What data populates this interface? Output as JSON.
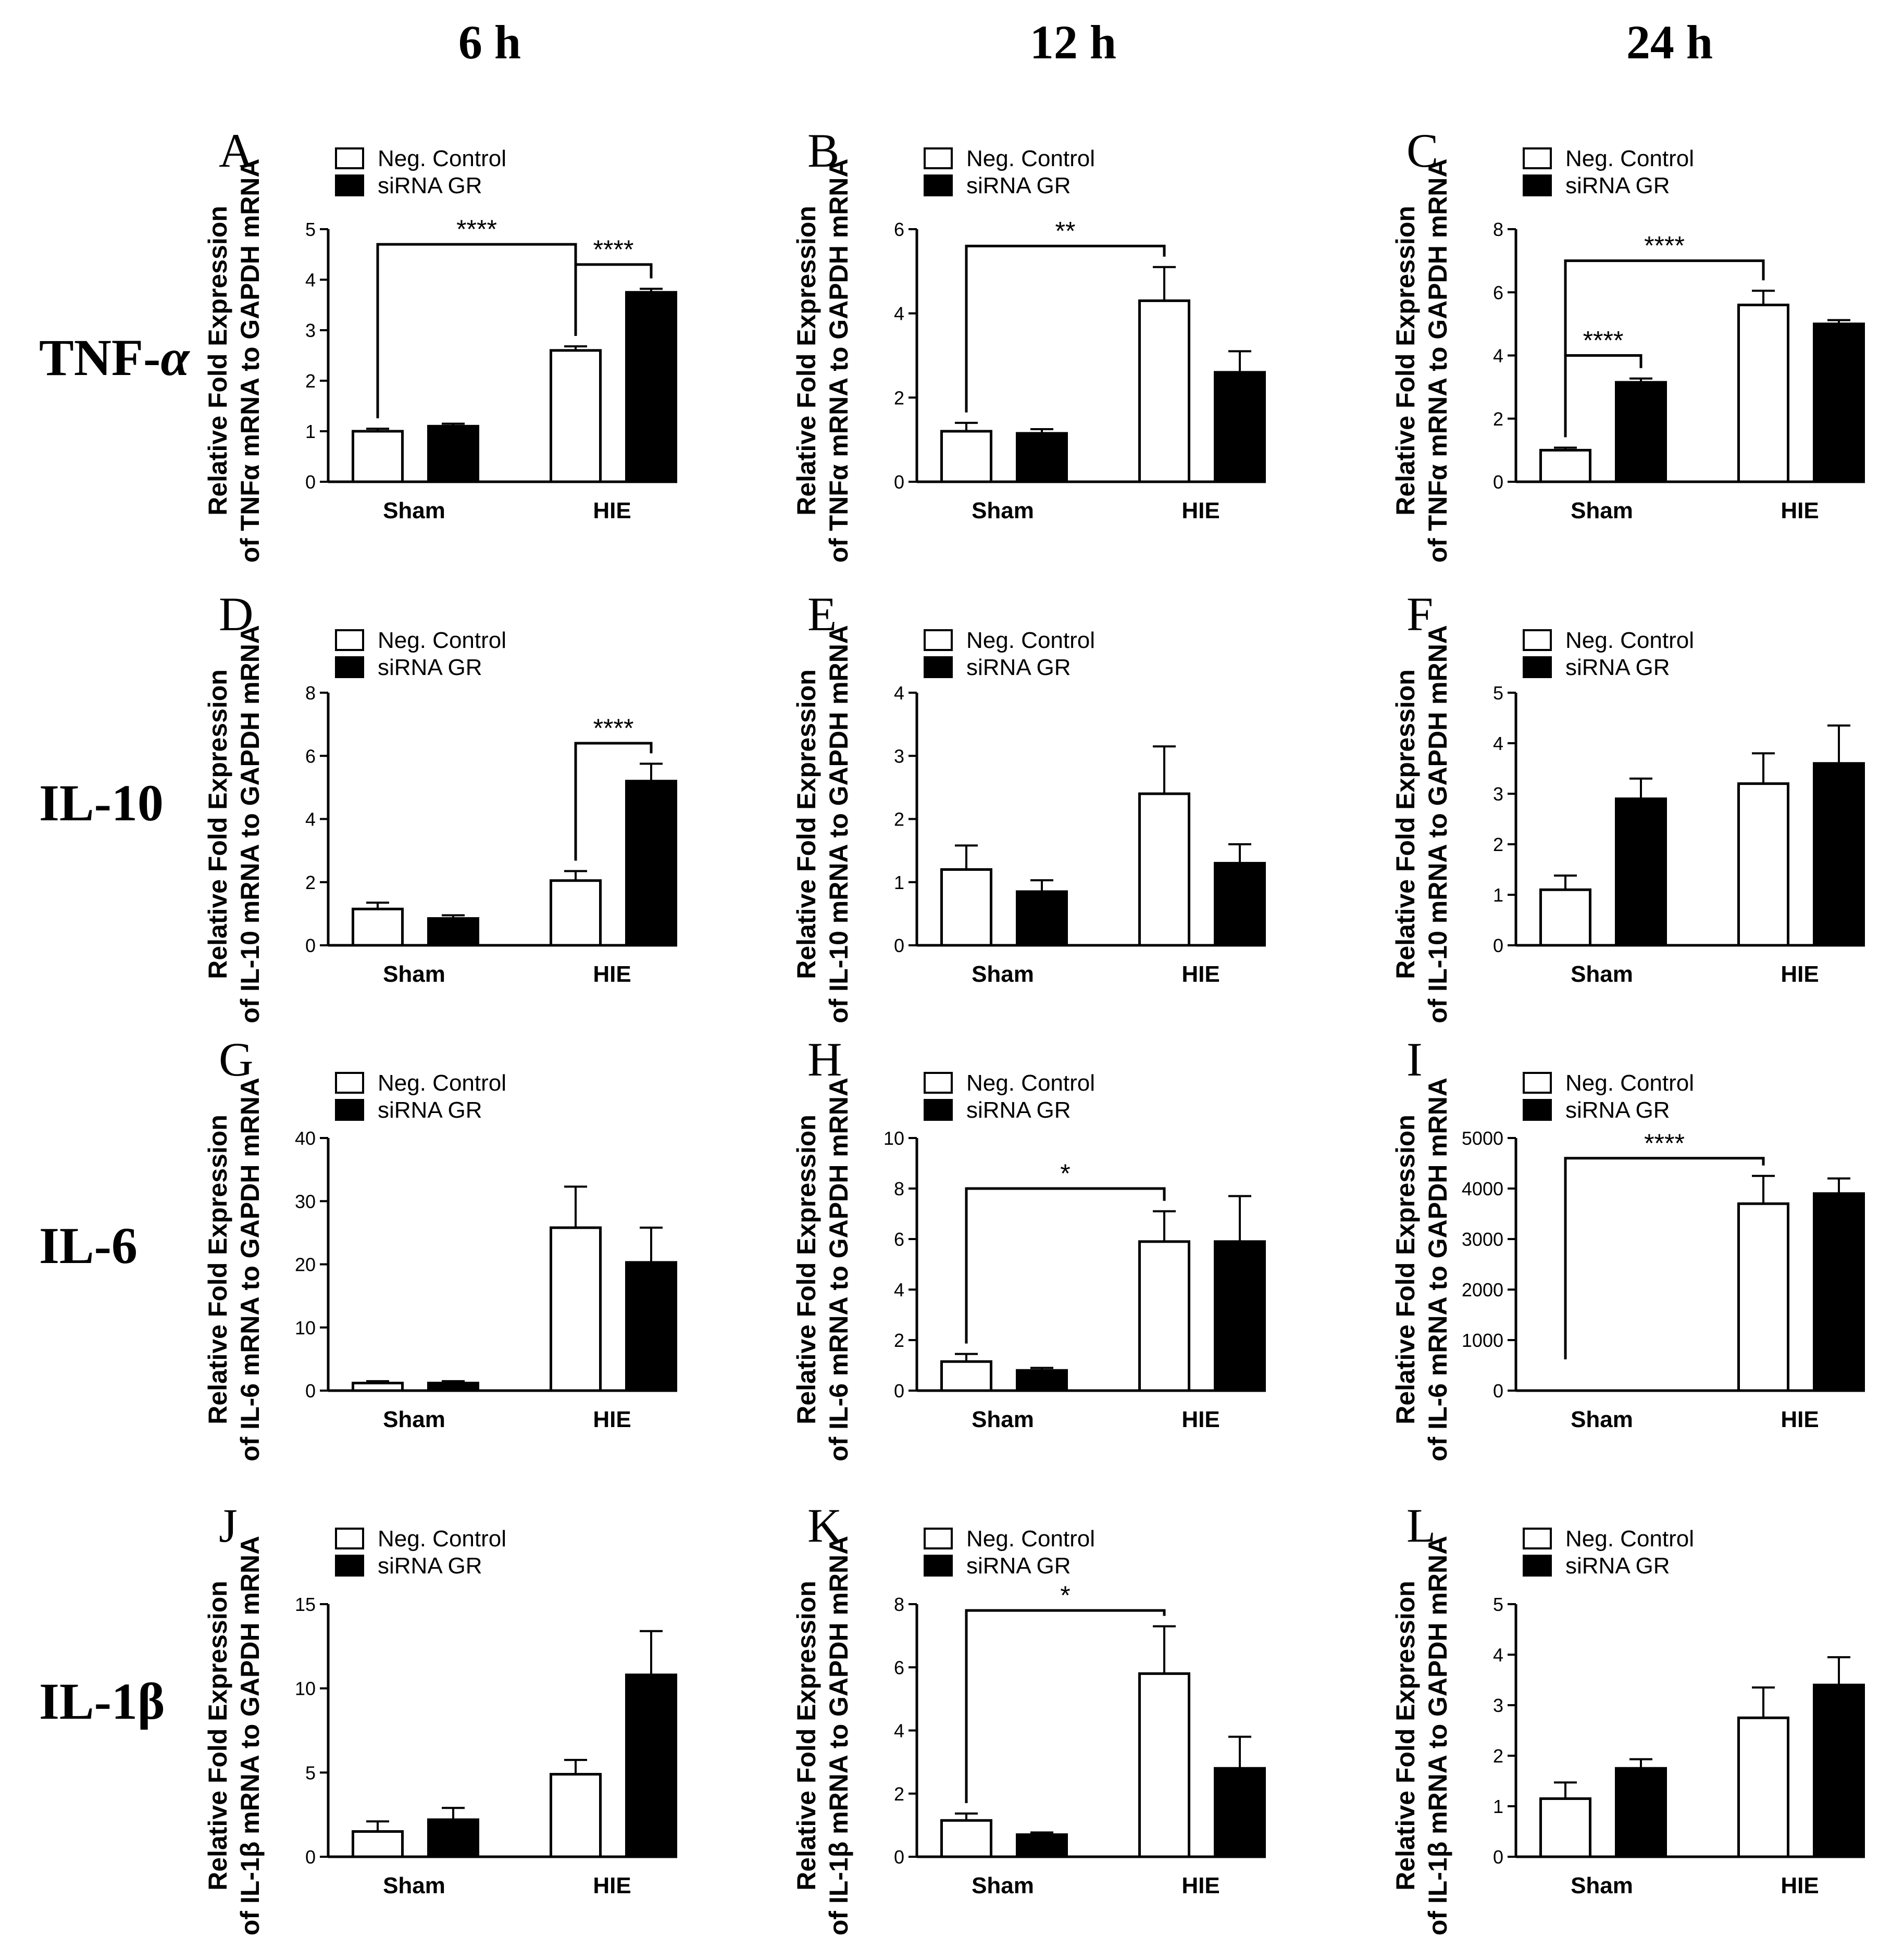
{
  "columns": [
    "6 h",
    "12 h",
    "24 h"
  ],
  "rows": [
    "TNF-",
    "IL-10",
    "IL-6",
    "IL-1β"
  ],
  "row_suffix": {
    "TNF-": "α"
  },
  "legend": {
    "neg": "Neg. Control",
    "sirna": "siRNA GR"
  },
  "colors": {
    "neg": "#ffffff",
    "sirna": "#000000",
    "stroke": "#000000"
  },
  "chart_data": [
    {
      "type": "bar",
      "panel": "A",
      "title": "6 h",
      "ylabel1": "Relative Fold Expression",
      "ylabel2": "of TNFα mRNA to GAPDH mRNA",
      "categories": [
        "Sham",
        "HIE"
      ],
      "ylim": [
        0,
        5
      ],
      "yticks": [
        0,
        1,
        2,
        3,
        4,
        5
      ],
      "series": [
        {
          "name": "Neg. Control",
          "values": [
            1.0,
            2.6
          ],
          "errors": [
            0.05,
            0.08
          ]
        },
        {
          "name": "siRNA GR",
          "values": [
            1.1,
            3.75
          ],
          "errors": [
            0.05,
            0.07
          ]
        }
      ],
      "sig": [
        {
          "from": [
            0,
            0
          ],
          "to": [
            1,
            0
          ],
          "label": "****",
          "y": 4.7
        },
        {
          "from": [
            1,
            0
          ],
          "to": [
            1,
            1
          ],
          "label": "****",
          "y": 4.3
        }
      ]
    },
    {
      "type": "bar",
      "panel": "B",
      "title": "12 h",
      "ylabel1": "Relative Fold Expression",
      "ylabel2": "of TNFα mRNA to GAPDH mRNA",
      "categories": [
        "Sham",
        "HIE"
      ],
      "ylim": [
        0,
        6
      ],
      "yticks": [
        0,
        2,
        4,
        6
      ],
      "series": [
        {
          "name": "Neg. Control",
          "values": [
            1.2,
            4.3
          ],
          "errors": [
            0.2,
            0.8
          ]
        },
        {
          "name": "siRNA GR",
          "values": [
            1.15,
            2.6
          ],
          "errors": [
            0.1,
            0.5
          ]
        }
      ],
      "sig": [
        {
          "from": [
            0,
            0
          ],
          "to": [
            1,
            0
          ],
          "label": "**",
          "y": 5.6
        }
      ]
    },
    {
      "type": "bar",
      "panel": "C",
      "title": "24 h",
      "ylabel1": "Relative Fold Expression",
      "ylabel2": "of TNFα mRNA to GAPDH mRNA",
      "categories": [
        "Sham",
        "HIE"
      ],
      "ylim": [
        0,
        8
      ],
      "yticks": [
        0,
        2,
        4,
        6,
        8
      ],
      "series": [
        {
          "name": "Neg. Control",
          "values": [
            1.0,
            5.6
          ],
          "errors": [
            0.08,
            0.45
          ]
        },
        {
          "name": "siRNA GR",
          "values": [
            3.15,
            5.0
          ],
          "errors": [
            0.12,
            0.12
          ]
        }
      ],
      "sig": [
        {
          "from": [
            0,
            0
          ],
          "to": [
            1,
            0
          ],
          "label": "****",
          "y": 7.0
        },
        {
          "from": [
            0,
            0
          ],
          "to": [
            0,
            1
          ],
          "label": "****",
          "y": 4.0
        }
      ]
    },
    {
      "type": "bar",
      "panel": "D",
      "title": "6 h",
      "ylabel1": "Relative Fold Expression",
      "ylabel2": "of IL-10 mRNA to GAPDH mRNA",
      "categories": [
        "Sham",
        "HIE"
      ],
      "ylim": [
        0,
        8
      ],
      "yticks": [
        0,
        2,
        4,
        6,
        8
      ],
      "series": [
        {
          "name": "Neg. Control",
          "values": [
            1.15,
            2.05
          ],
          "errors": [
            0.2,
            0.3
          ]
        },
        {
          "name": "siRNA GR",
          "values": [
            0.85,
            5.2
          ],
          "errors": [
            0.1,
            0.55
          ]
        }
      ],
      "sig": [
        {
          "from": [
            1,
            0
          ],
          "to": [
            1,
            1
          ],
          "label": "****",
          "y": 6.4
        }
      ]
    },
    {
      "type": "bar",
      "panel": "E",
      "title": "12 h",
      "ylabel1": "Relative Fold Expression",
      "ylabel2": "of IL-10 mRNA to GAPDH mRNA",
      "categories": [
        "Sham",
        "HIE"
      ],
      "ylim": [
        0,
        4
      ],
      "yticks": [
        0,
        1,
        2,
        3,
        4
      ],
      "series": [
        {
          "name": "Neg. Control",
          "values": [
            1.2,
            2.4
          ],
          "errors": [
            0.38,
            0.75
          ]
        },
        {
          "name": "siRNA GR",
          "values": [
            0.85,
            1.3
          ],
          "errors": [
            0.18,
            0.3
          ]
        }
      ],
      "sig": []
    },
    {
      "type": "bar",
      "panel": "F",
      "title": "24 h",
      "ylabel1": "Relative Fold Expression",
      "ylabel2": "of IL-10 mRNA to GAPDH mRNA",
      "categories": [
        "Sham",
        "HIE"
      ],
      "ylim": [
        0,
        5
      ],
      "yticks": [
        0,
        1,
        2,
        3,
        4,
        5
      ],
      "series": [
        {
          "name": "Neg. Control",
          "values": [
            1.1,
            3.2
          ],
          "errors": [
            0.28,
            0.6
          ]
        },
        {
          "name": "siRNA GR",
          "values": [
            2.9,
            3.6
          ],
          "errors": [
            0.4,
            0.75
          ]
        }
      ],
      "sig": []
    },
    {
      "type": "bar",
      "panel": "G",
      "title": "6 h",
      "ylabel1": "Relative Fold Expression",
      "ylabel2": "of IL-6 mRNA to GAPDH mRNA",
      "categories": [
        "Sham",
        "HIE"
      ],
      "ylim": [
        0,
        40
      ],
      "yticks": [
        0,
        10,
        20,
        30,
        40
      ],
      "series": [
        {
          "name": "Neg. Control",
          "values": [
            1.2,
            25.8
          ],
          "errors": [
            0.3,
            6.5
          ]
        },
        {
          "name": "siRNA GR",
          "values": [
            1.2,
            20.3
          ],
          "errors": [
            0.3,
            5.5
          ]
        }
      ],
      "sig": []
    },
    {
      "type": "bar",
      "panel": "H",
      "title": "12 h",
      "ylabel1": "Relative Fold Expression",
      "ylabel2": "of IL-6 mRNA to GAPDH mRNA",
      "categories": [
        "Sham",
        "HIE"
      ],
      "ylim": [
        0,
        10
      ],
      "yticks": [
        0,
        2,
        4,
        6,
        8,
        10
      ],
      "series": [
        {
          "name": "Neg. Control",
          "values": [
            1.15,
            5.9
          ],
          "errors": [
            0.3,
            1.2
          ]
        },
        {
          "name": "siRNA GR",
          "values": [
            0.8,
            5.9
          ],
          "errors": [
            0.1,
            1.8
          ]
        }
      ],
      "sig": [
        {
          "from": [
            0,
            0
          ],
          "to": [
            1,
            0
          ],
          "label": "*",
          "y": 8.0
        }
      ]
    },
    {
      "type": "bar",
      "panel": "I",
      "title": "24 h",
      "ylabel1": "Relative Fold Expression",
      "ylabel2": "of IL-6 mRNA to GAPDH mRNA",
      "categories": [
        "Sham",
        "HIE"
      ],
      "ylim": [
        0,
        5000
      ],
      "yticks": [
        0,
        1000,
        2000,
        3000,
        4000,
        5000
      ],
      "series": [
        {
          "name": "Neg. Control",
          "values": [
            1,
            3700
          ],
          "errors": [
            0,
            550
          ]
        },
        {
          "name": "siRNA GR",
          "values": [
            1,
            3900
          ],
          "errors": [
            0,
            300
          ]
        }
      ],
      "sig": [
        {
          "from": [
            0,
            0
          ],
          "to": [
            1,
            0
          ],
          "label": "****",
          "y": 4600
        }
      ]
    },
    {
      "type": "bar",
      "panel": "J",
      "title": "6 h",
      "ylabel1": "Relative Fold Expression",
      "ylabel2": "of IL-1β mRNA to GAPDH mRNA",
      "categories": [
        "Sham",
        "HIE"
      ],
      "ylim": [
        0,
        15
      ],
      "yticks": [
        0,
        5,
        10,
        15
      ],
      "series": [
        {
          "name": "Neg. Control",
          "values": [
            1.5,
            4.9
          ],
          "errors": [
            0.6,
            0.85
          ]
        },
        {
          "name": "siRNA GR",
          "values": [
            2.2,
            10.8
          ],
          "errors": [
            0.7,
            2.6
          ]
        }
      ],
      "sig": []
    },
    {
      "type": "bar",
      "panel": "K",
      "title": "12 h",
      "ylabel1": "Relative Fold Expression",
      "ylabel2": "of IL-1β mRNA to GAPDH mRNA",
      "categories": [
        "Sham",
        "HIE"
      ],
      "ylim": [
        0,
        8
      ],
      "yticks": [
        0,
        2,
        4,
        6,
        8
      ],
      "series": [
        {
          "name": "Neg. Control",
          "values": [
            1.15,
            5.8
          ],
          "errors": [
            0.22,
            1.5
          ]
        },
        {
          "name": "siRNA GR",
          "values": [
            0.7,
            2.8
          ],
          "errors": [
            0.07,
            1.0
          ]
        }
      ],
      "sig": [
        {
          "from": [
            0,
            0
          ],
          "to": [
            1,
            0
          ],
          "label": "*",
          "y": 7.8
        }
      ]
    },
    {
      "type": "bar",
      "panel": "L",
      "title": "24 h",
      "ylabel1": "Relative Fold Expression",
      "ylabel2": "of IL-1β mRNA to GAPDH mRNA",
      "categories": [
        "Sham",
        "HIE"
      ],
      "ylim": [
        0,
        5
      ],
      "yticks": [
        0,
        1,
        2,
        3,
        4,
        5
      ],
      "series": [
        {
          "name": "Neg. Control",
          "values": [
            1.15,
            2.75
          ],
          "errors": [
            0.32,
            0.6
          ]
        },
        {
          "name": "siRNA GR",
          "values": [
            1.75,
            3.4
          ],
          "errors": [
            0.18,
            0.55
          ]
        }
      ],
      "sig": []
    }
  ]
}
